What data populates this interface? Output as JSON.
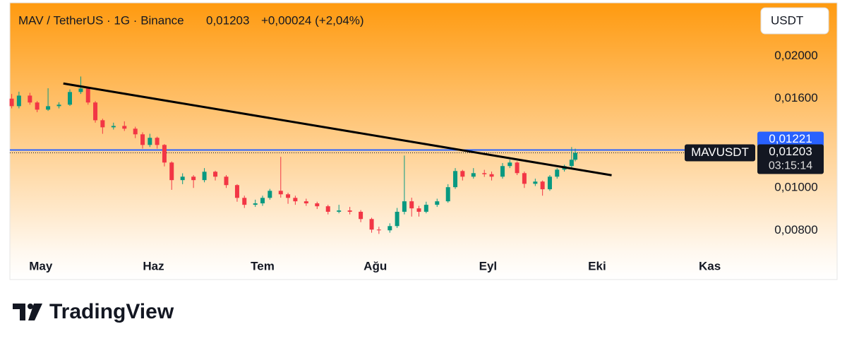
{
  "header": {
    "title": "MAV / TetherUS · 1G · Binance",
    "price": "0,01203",
    "change": "+0,00024 (+2,04%)",
    "currency": "USDT"
  },
  "brand": "TradingView",
  "chart_data": {
    "type": "candlestick",
    "log_scale": true,
    "up_color": "#089981",
    "down_color": "#f23645",
    "x": [
      -8,
      -6,
      -3,
      -1,
      2,
      5,
      8,
      11,
      13,
      15,
      17,
      20,
      23,
      26,
      28,
      30,
      32,
      34,
      36,
      39,
      42,
      45,
      48,
      51,
      54,
      56,
      59,
      61,
      63,
      66,
      68,
      70,
      73,
      76,
      79,
      82,
      85,
      88,
      91,
      93,
      96,
      98,
      100,
      102,
      104,
      106,
      109,
      112,
      114,
      116,
      119,
      122,
      124,
      127,
      129,
      131,
      133,
      136,
      138,
      140,
      142,
      144,
      146,
      147
    ],
    "open": [
      0.016,
      0.01538,
      0.01626,
      0.01568,
      0.0151,
      0.01538,
      0.0155,
      0.01657,
      0.01688,
      0.01568,
      0.01428,
      0.01376,
      0.01386,
      0.01366,
      0.01326,
      0.01254,
      0.01302,
      0.01254,
      0.01143,
      0.01042,
      0.01061,
      0.01042,
      0.01089,
      0.01061,
      0.01015,
      0.00949,
      0.00915,
      0.00922,
      0.00949,
      0.00985,
      0.00967,
      0.00949,
      0.00932,
      0.00922,
      0.00908,
      0.00882,
      0.00888,
      0.00882,
      0.00849,
      0.00803,
      0.008,
      0.00818,
      0.00882,
      0.00932,
      0.00898,
      0.00882,
      0.00915,
      0.00932,
      0.01004,
      0.01093,
      0.01061,
      0.01081,
      0.01075,
      0.01061,
      0.01122,
      0.01143,
      0.01081,
      0.01022,
      0.01034,
      0.00993,
      0.01061,
      0.01101,
      0.01122,
      0.0116
    ],
    "high": [
      0.0164,
      0.0166,
      0.0165,
      0.0158,
      0.0169,
      0.0157,
      0.0168,
      0.01798,
      0.017,
      0.0158,
      0.0144,
      0.0141,
      0.0142,
      0.0138,
      0.0134,
      0.0133,
      0.0131,
      0.0126,
      0.0115,
      0.0108,
      0.0107,
      0.0111,
      0.01095,
      0.0107,
      0.0102,
      0.0096,
      0.0094,
      0.0096,
      0.00995,
      0.01178,
      0.00975,
      0.0096,
      0.00945,
      0.0093,
      0.00915,
      0.00915,
      0.00905,
      0.0089,
      0.00855,
      0.00815,
      0.0083,
      0.009,
      0.01186,
      0.0095,
      0.0091,
      0.0093,
      0.00945,
      0.0102,
      0.0111,
      0.011,
      0.0111,
      0.011,
      0.0109,
      0.0114,
      0.0116,
      0.0115,
      0.0109,
      0.0105,
      0.0104,
      0.0107,
      0.0111,
      0.0113,
      0.0124,
      0.0123
    ],
    "low": [
      0.0152,
      0.0152,
      0.0155,
      0.0149,
      0.015,
      0.0152,
      0.0154,
      0.0164,
      0.0155,
      0.0141,
      0.0133,
      0.0136,
      0.0135,
      0.013,
      0.0123,
      0.0124,
      0.0123,
      0.0112,
      0.0099,
      0.0102,
      0.01,
      0.0103,
      0.0104,
      0.01,
      0.0093,
      0.009,
      0.00905,
      0.0091,
      0.0094,
      0.0095,
      0.0092,
      0.00915,
      0.0091,
      0.00895,
      0.0087,
      0.00875,
      0.0087,
      0.00835,
      0.0079,
      0.00785,
      0.0079,
      0.0081,
      0.0087,
      0.0086,
      0.0086,
      0.00875,
      0.00905,
      0.00925,
      0.00995,
      0.0104,
      0.0105,
      0.0106,
      0.0104,
      0.0105,
      0.0111,
      0.0107,
      0.01,
      0.0101,
      0.0096,
      0.00985,
      0.0105,
      0.0109,
      0.0111,
      0.0115
    ],
    "close": [
      0.01538,
      0.01626,
      0.01568,
      0.0151,
      0.01538,
      0.0155,
      0.01657,
      0.01688,
      0.01568,
      0.01428,
      0.01376,
      0.01386,
      0.01366,
      0.01326,
      0.01254,
      0.01302,
      0.01254,
      0.01143,
      0.01042,
      0.01061,
      0.01042,
      0.01089,
      0.01061,
      0.01015,
      0.00949,
      0.00915,
      0.00922,
      0.00949,
      0.00985,
      0.00967,
      0.00949,
      0.00932,
      0.00922,
      0.00908,
      0.00882,
      0.00888,
      0.00882,
      0.00849,
      0.00803,
      0.008,
      0.00818,
      0.00882,
      0.00932,
      0.00898,
      0.00882,
      0.00915,
      0.00932,
      0.01004,
      0.01093,
      0.01061,
      0.01081,
      0.01075,
      0.01061,
      0.01122,
      0.01143,
      0.01081,
      0.01022,
      0.01034,
      0.00993,
      0.01061,
      0.01101,
      0.01122,
      0.0116,
      0.01203
    ],
    "xlim": [
      -8.5,
      196.5
    ],
    "xticks": [
      {
        "value": 0,
        "label": "May"
      },
      {
        "value": 31,
        "label": "Haz"
      },
      {
        "value": 61,
        "label": "Tem"
      },
      {
        "value": 92,
        "label": "Ağu"
      },
      {
        "value": 123,
        "label": "Eyl"
      },
      {
        "value": 153,
        "label": "Eki"
      },
      {
        "value": 184,
        "label": "Kas"
      }
    ],
    "ylim": [
      0.00719,
      0.0264
    ],
    "yticks": [
      {
        "value": 0.008,
        "label": "0,00800"
      },
      {
        "value": 0.01,
        "label": "0,01000"
      },
      {
        "value": 0.016,
        "label": "0,01600"
      },
      {
        "value": 0.02,
        "label": "0,02000"
      }
    ],
    "hline": {
      "value": 0.01221,
      "label": "0,01221",
      "color": "#2962ff"
    },
    "last_price": {
      "value": 0.01203,
      "label": "0,01203",
      "symbol": "MAVUSDT",
      "countdown": "03:15:14"
    },
    "trendline": {
      "x": [
        6.2,
        157
      ],
      "y": [
        0.01733,
        0.01069
      ],
      "color": "#000000"
    }
  }
}
